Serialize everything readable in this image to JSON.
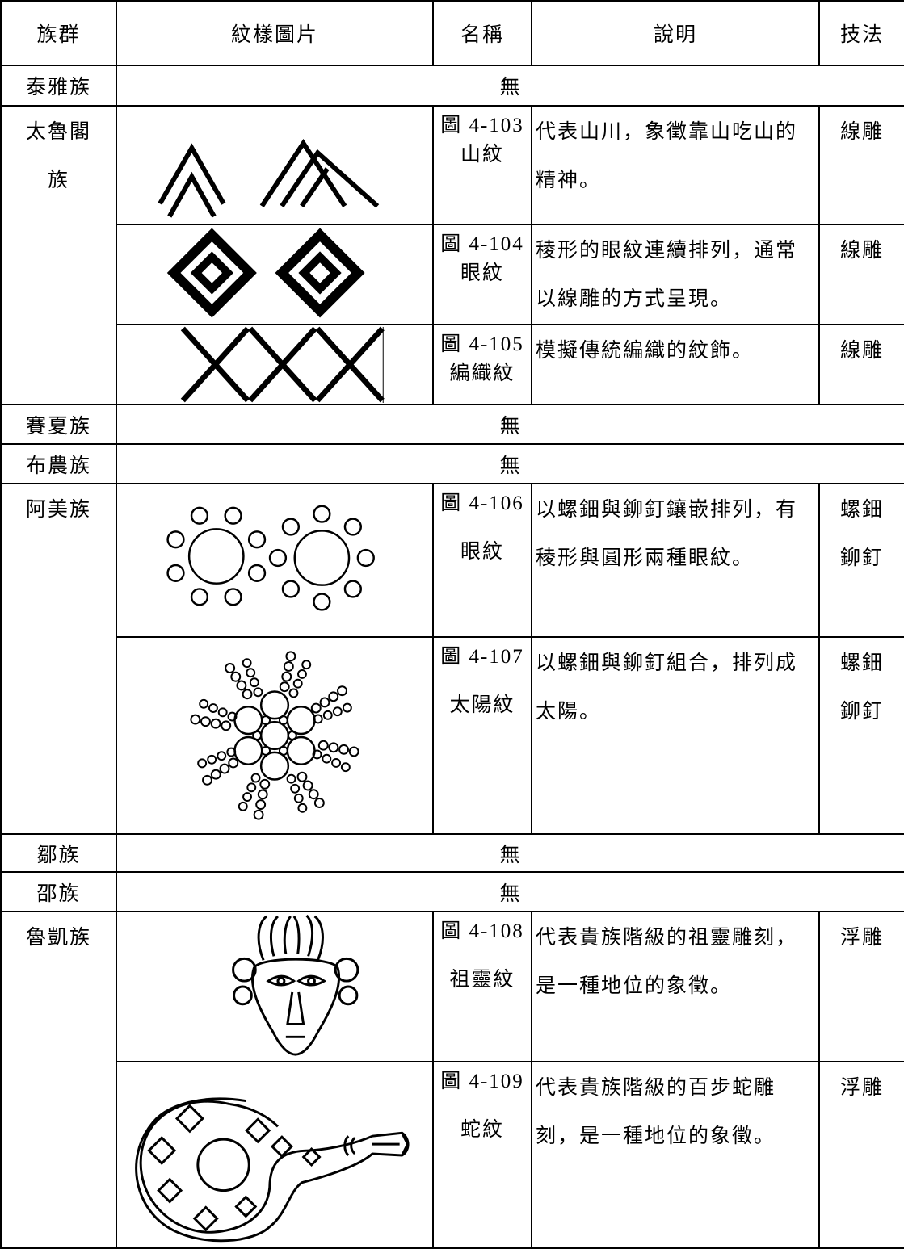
{
  "table": {
    "headers": [
      "族群",
      "紋樣圖片",
      "名稱",
      "說明",
      "技法"
    ],
    "rows": [
      {
        "group": "泰雅族",
        "note": "無"
      },
      {
        "group": "太魯閣族",
        "patterns": [
          {
            "figure": "圖 4-103",
            "name": "山紋",
            "description": "代表山川，象徵靠山吃山的精神。",
            "technique": "線雕"
          },
          {
            "figure": "圖 4-104",
            "name": "眼紋",
            "description": "稜形的眼紋連續排列，通常以線雕的方式呈現。",
            "technique": "線雕"
          },
          {
            "figure": "圖 4-105",
            "name": "編織紋",
            "description": "模擬傳統編織的紋飾。",
            "technique": "線雕"
          }
        ]
      },
      {
        "group": "賽夏族",
        "note": "無"
      },
      {
        "group": "布農族",
        "note": "無"
      },
      {
        "group": "阿美族",
        "patterns": [
          {
            "figure": "圖 4-106",
            "name": "眼紋",
            "description": "以螺鈿與鉚釘鑲嵌排列，有稜形與圓形兩種眼紋。",
            "technique": "螺鈿鉚釘"
          },
          {
            "figure": "圖 4-107",
            "name": "太陽紋",
            "description": "以螺鈿與鉚釘組合，排列成太陽。",
            "technique": "螺鈿鉚釘"
          }
        ]
      },
      {
        "group": "鄒族",
        "note": "無"
      },
      {
        "group": "邵族",
        "note": "無"
      },
      {
        "group": "魯凱族",
        "patterns": [
          {
            "figure": "圖 4-108",
            "name": "祖靈紋",
            "description": "代表貴族階級的祖靈雕刻，是一種地位的象徵。",
            "technique": "浮雕"
          },
          {
            "figure": "圖 4-109",
            "name": "蛇紋",
            "description": "代表貴族階級的百步蛇雕刻，是一種地位的象徵。",
            "technique": "浮雕"
          }
        ]
      }
    ]
  }
}
